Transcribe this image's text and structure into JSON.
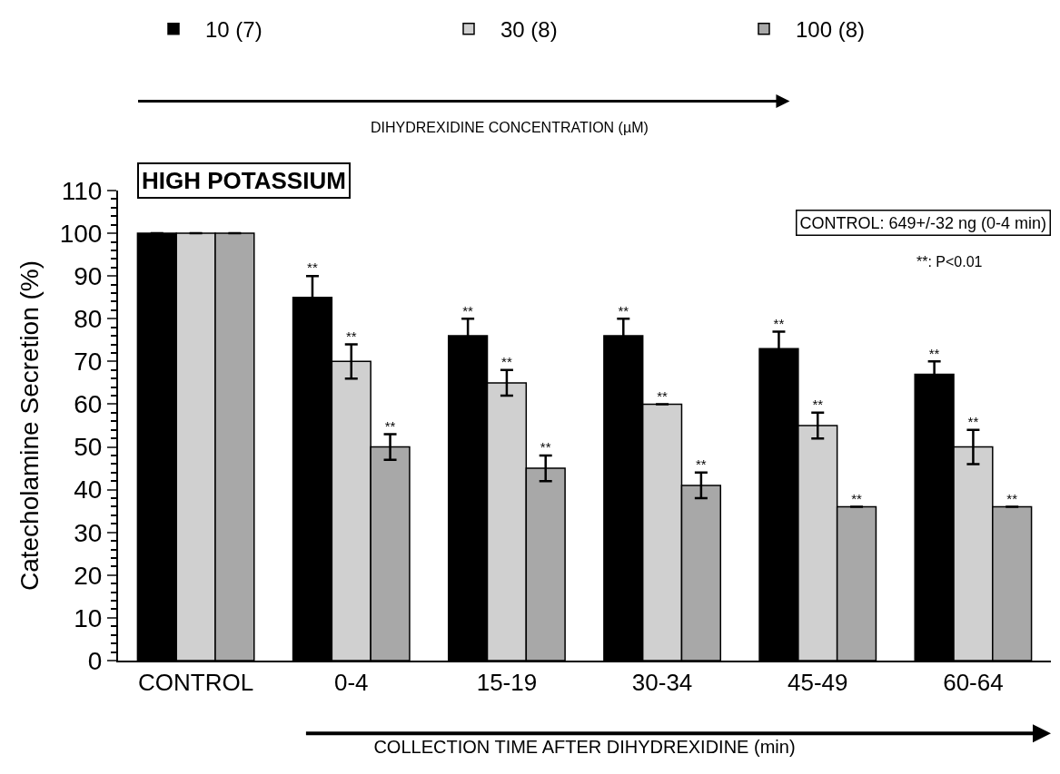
{
  "chart_data": {
    "type": "bar",
    "title": "HIGH POTASSIUM",
    "xlabel": "COLLECTION TIME AFTER DIHYDREXIDINE (min)",
    "ylabel": "Catecholamine Secretion (%)",
    "legend_title": "DIHYDREXIDINE CONCENTRATION (µM)",
    "categories": [
      "CONTROL",
      "0-4",
      "15-19",
      "30-34",
      "45-49",
      "60-64"
    ],
    "series": [
      {
        "name": "10 (7)",
        "color": "#000000",
        "values": [
          100,
          85,
          76,
          76,
          73,
          67
        ],
        "errors": [
          null,
          5,
          4,
          4,
          4,
          3
        ],
        "value_labels": [
          null,
          "**",
          "**",
          "**",
          "**",
          "**"
        ]
      },
      {
        "name": "30 (8)",
        "color": "#d0d0d0",
        "values": [
          100,
          70,
          65,
          60,
          55,
          50
        ],
        "errors": [
          null,
          4,
          3,
          null,
          3,
          4
        ],
        "value_labels": [
          null,
          "**",
          "**",
          "**",
          "**",
          "**"
        ]
      },
      {
        "name": "100 (8)",
        "color": "#a8a8a8",
        "values": [
          100,
          50,
          45,
          41,
          36,
          36
        ],
        "errors": [
          null,
          3,
          3,
          3,
          null,
          null
        ],
        "value_labels": [
          null,
          "**",
          "**",
          "**",
          "**",
          "**"
        ]
      }
    ],
    "ylim": [
      0,
      110
    ],
    "yticks": [
      0,
      10,
      20,
      30,
      40,
      50,
      60,
      70,
      80,
      90,
      100,
      110
    ],
    "annotations": [
      "CONTROL: 649+/-32 ng (0-4 min)",
      "**: P<0.01"
    ],
    "legend": "top"
  }
}
